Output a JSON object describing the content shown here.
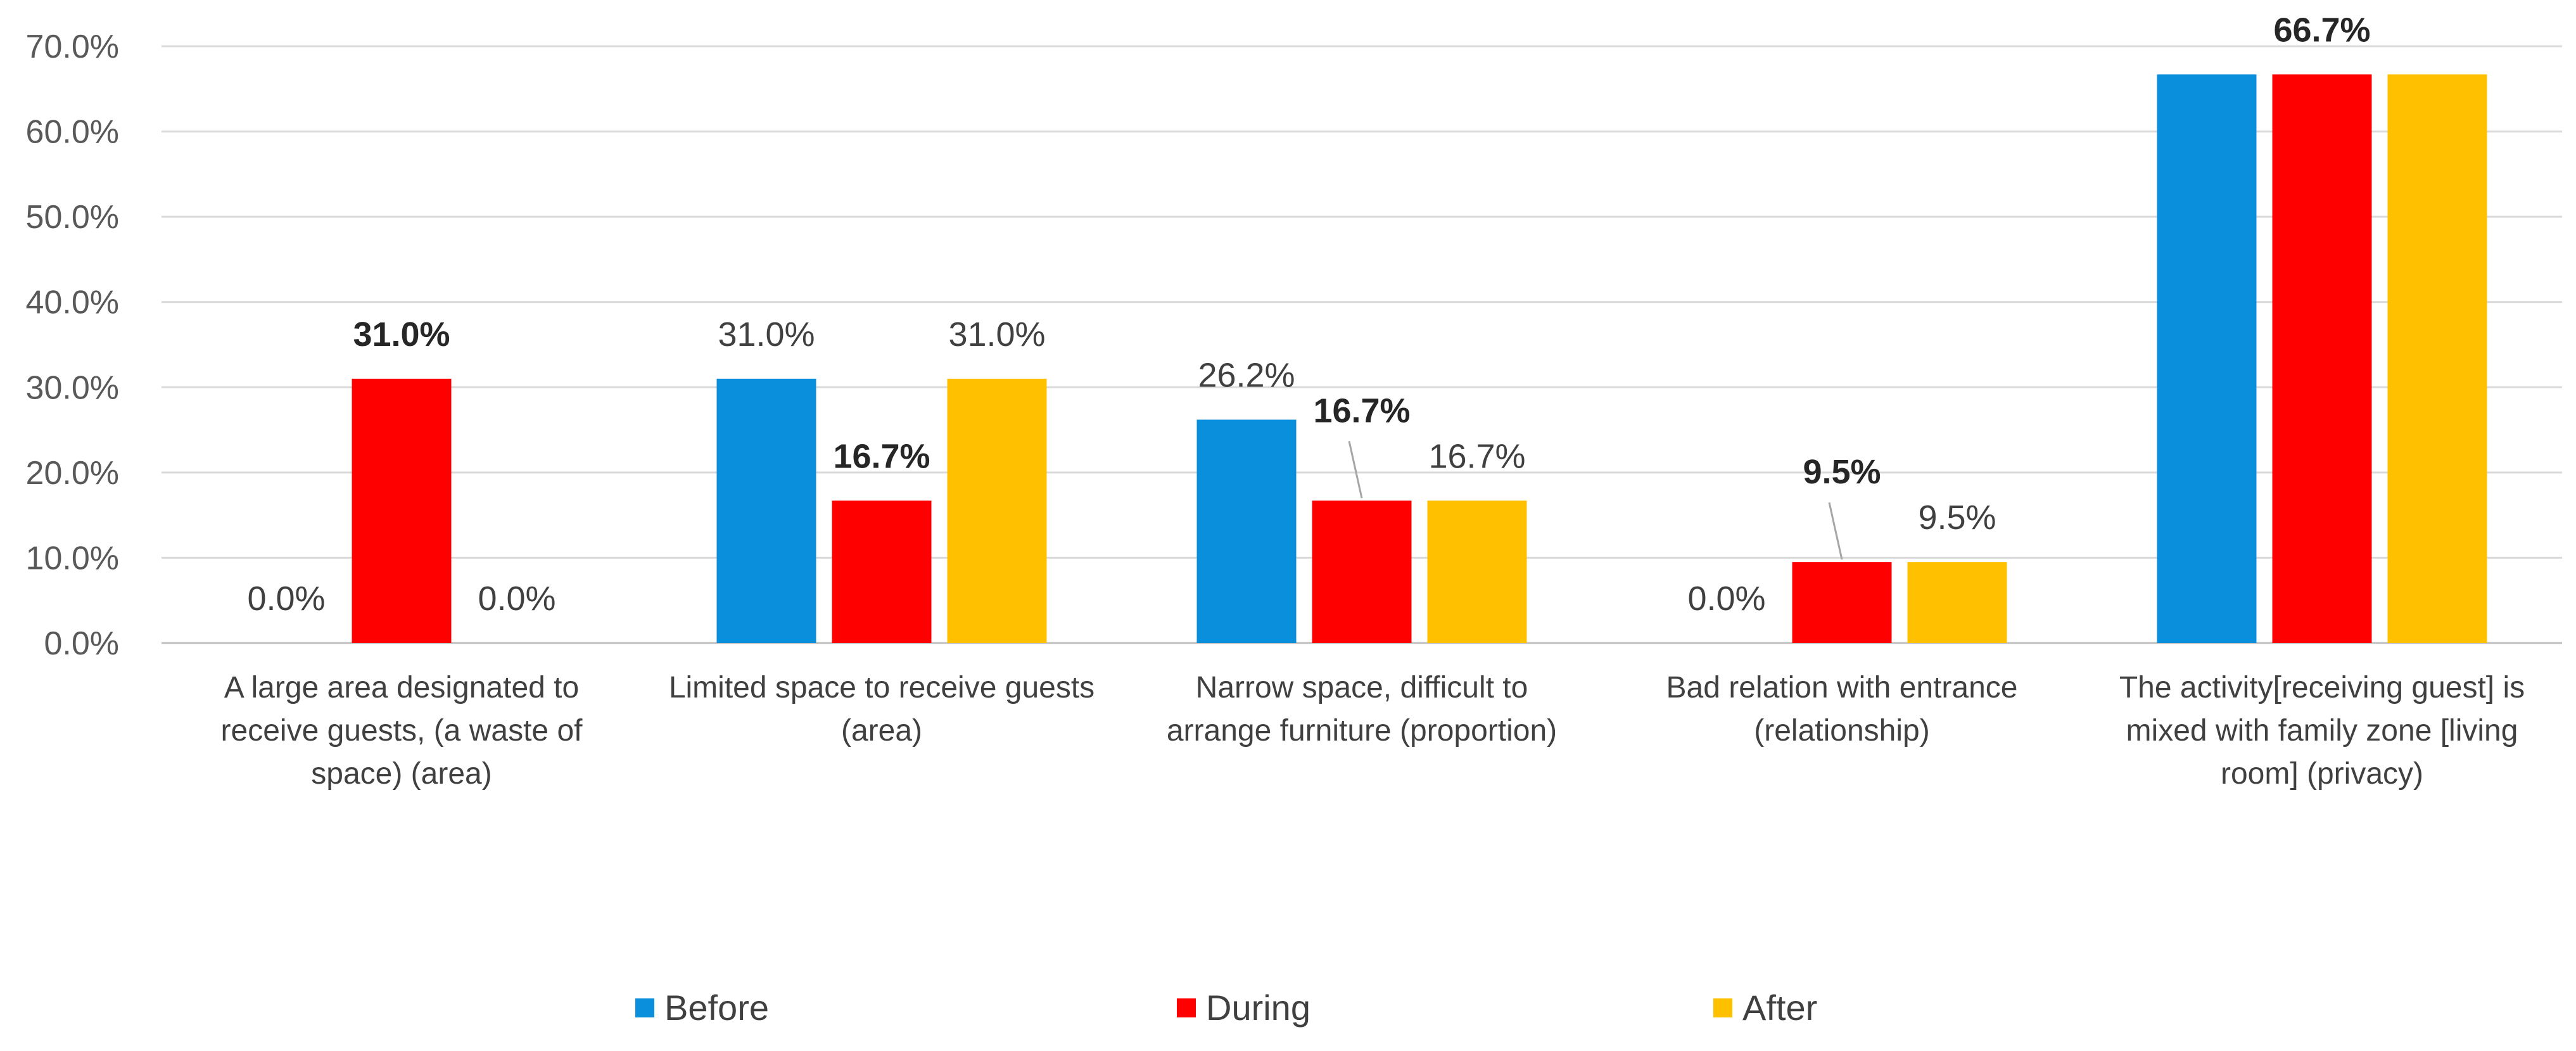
{
  "chart_data": {
    "type": "bar",
    "title": "",
    "xlabel": "",
    "ylabel": "",
    "ylim": [
      0,
      70
    ],
    "y_ticks": [
      0,
      10,
      20,
      30,
      40,
      50,
      60,
      70
    ],
    "y_tick_format": "%",
    "grid": true,
    "legend_position": "bottom",
    "categories": [
      "A large area designated to receive guests, (a waste of space) (area)",
      "Limited space to receive guests (area)",
      "Narrow space, difficult to arrange furniture (proportion)",
      "Bad relation with entrance (relationship)",
      "The activity[receiving guest] is mixed with family zone [living room] (privacy)"
    ],
    "category_lines": [
      [
        "A large area designated to",
        "receive guests, (a waste of",
        "space) (area)"
      ],
      [
        "Limited space to receive guests",
        "(area)"
      ],
      [
        "Narrow space, difficult to",
        "arrange furniture (proportion)"
      ],
      [
        "Bad relation with entrance",
        "(relationship)"
      ],
      [
        "The activity[receiving guest] is",
        "mixed with family zone [living",
        "room] (privacy)"
      ]
    ],
    "series": [
      {
        "name": "Before",
        "color": "#0a8fdc",
        "values": [
          0.0,
          31.0,
          26.2,
          0.0,
          66.7
        ]
      },
      {
        "name": "During",
        "color": "#ff0000",
        "values": [
          31.0,
          16.7,
          16.7,
          9.5,
          66.7
        ]
      },
      {
        "name": "After",
        "color": "#ffc000",
        "values": [
          0.0,
          31.0,
          16.7,
          9.5,
          66.7
        ]
      }
    ],
    "data_labels": [
      {
        "category": 0,
        "series": 0,
        "text": "0.0%",
        "bold": false
      },
      {
        "category": 0,
        "series": 1,
        "text": "31.0%",
        "bold": true
      },
      {
        "category": 0,
        "series": 2,
        "text": "0.0%",
        "bold": false
      },
      {
        "category": 1,
        "series": 0,
        "text": "31.0%",
        "bold": false
      },
      {
        "category": 1,
        "series": 1,
        "text": "16.7%",
        "bold": true
      },
      {
        "category": 1,
        "series": 2,
        "text": "31.0%",
        "bold": false
      },
      {
        "category": 2,
        "series": 0,
        "text": "26.2%",
        "bold": false
      },
      {
        "category": 2,
        "series": 1,
        "text": "16.7%",
        "bold": true,
        "leader": true
      },
      {
        "category": 2,
        "series": 2,
        "text": "16.7%",
        "bold": false
      },
      {
        "category": 3,
        "series": 0,
        "text": "0.0%",
        "bold": false
      },
      {
        "category": 3,
        "series": 1,
        "text": "9.5%",
        "bold": true,
        "leader": true
      },
      {
        "category": 3,
        "series": 2,
        "text": "9.5%",
        "bold": false
      },
      {
        "category": 4,
        "series": 1,
        "text": "66.7%",
        "bold": true
      }
    ]
  }
}
